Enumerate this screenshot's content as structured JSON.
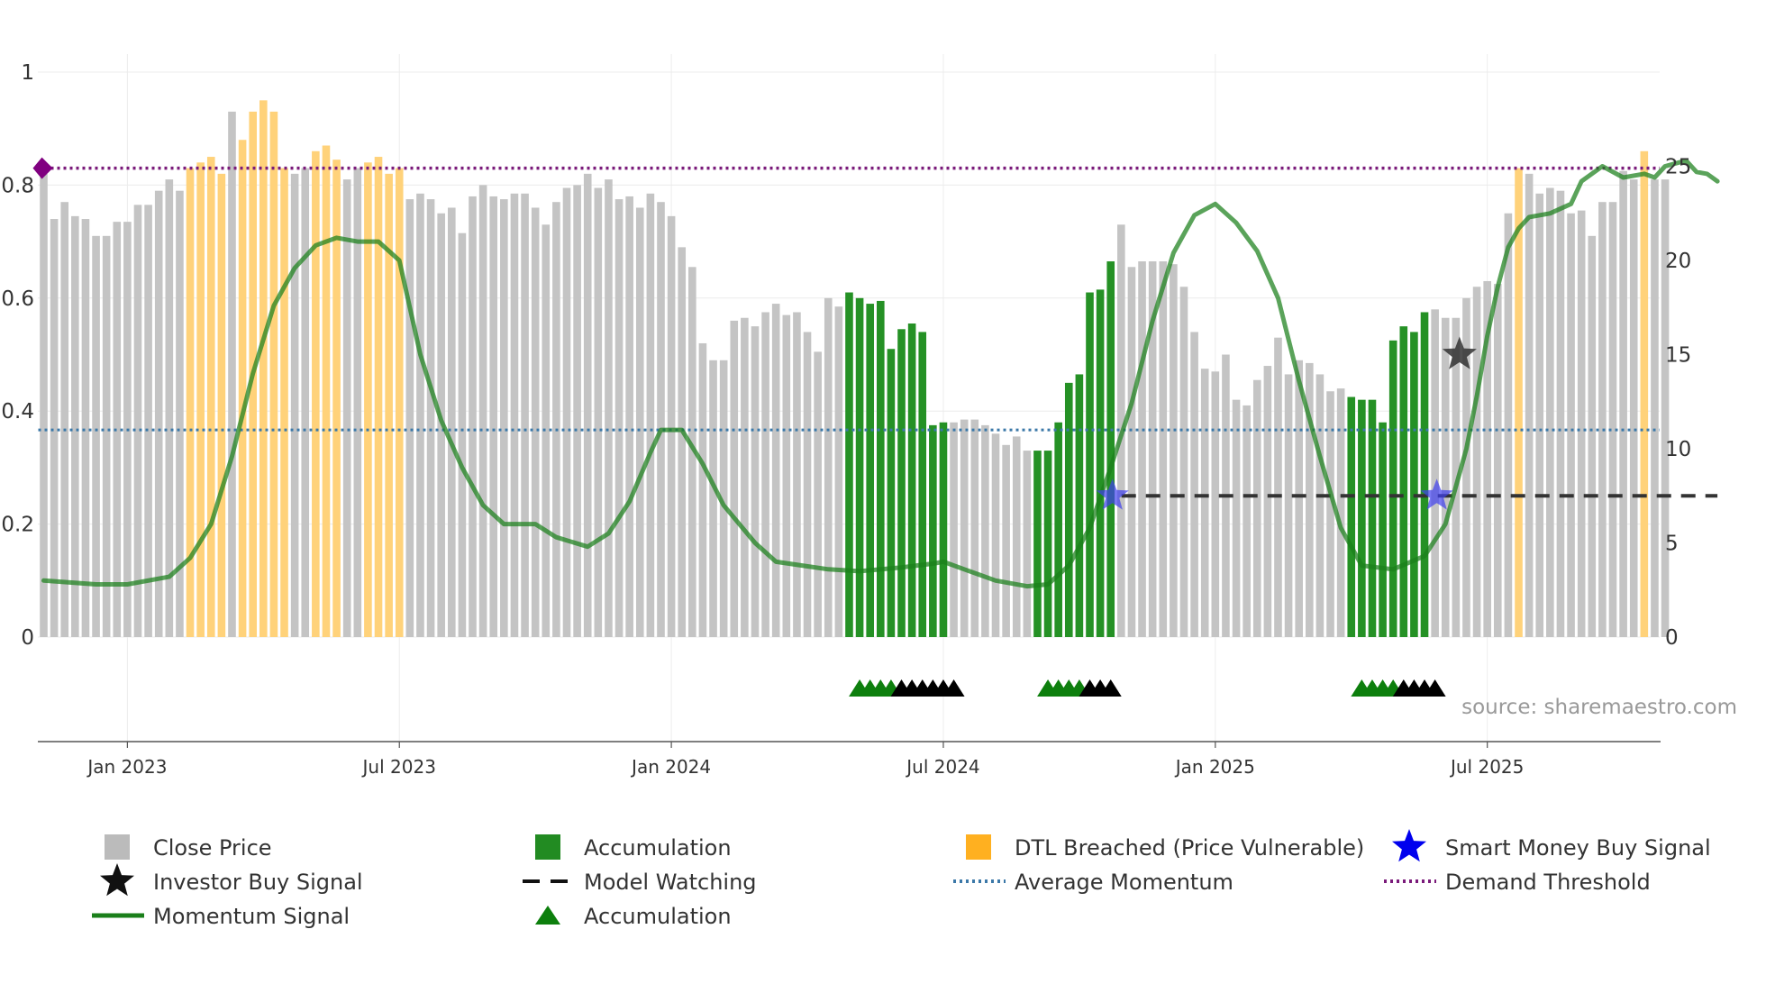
{
  "chart_data": {
    "type": "bar",
    "title": "",
    "source": "source: sharemaestro.com",
    "x_axis": {
      "ticks": [
        {
          "label": "Jan 2023",
          "week": 8
        },
        {
          "label": "Jul 2023",
          "week": 34
        },
        {
          "label": "Jan 2024",
          "week": 60
        },
        {
          "label": "Jul 2024",
          "week": 86
        },
        {
          "label": "Jan 2025",
          "week": 112
        },
        {
          "label": "Jul 2025",
          "week": 138
        }
      ]
    },
    "left_axis": {
      "min": 0,
      "max": 1,
      "ticks": [
        "0",
        "0.2",
        "0.4",
        "0.6",
        "0.8",
        "1"
      ]
    },
    "right_axis": {
      "min": 0,
      "max": 30,
      "ticks": [
        "0",
        "5",
        "10",
        "15",
        "20",
        "25"
      ]
    },
    "close_price": [
      0.82,
      0.74,
      0.77,
      0.745,
      0.74,
      0.71,
      0.71,
      0.735,
      0.735,
      0.765,
      0.765,
      0.79,
      0.81,
      0.79,
      0.83,
      0.84,
      0.85,
      0.82,
      0.93,
      0.88,
      0.93,
      0.95,
      0.93,
      0.83,
      0.82,
      0.83,
      0.86,
      0.87,
      0.845,
      0.81,
      0.83,
      0.84,
      0.85,
      0.82,
      0.83,
      0.775,
      0.785,
      0.775,
      0.75,
      0.76,
      0.715,
      0.78,
      0.8,
      0.78,
      0.775,
      0.785,
      0.785,
      0.76,
      0.73,
      0.77,
      0.795,
      0.8,
      0.82,
      0.795,
      0.81,
      0.775,
      0.78,
      0.76,
      0.785,
      0.77,
      0.745,
      0.69,
      0.655,
      0.52,
      0.49,
      0.49,
      0.56,
      0.565,
      0.55,
      0.575,
      0.59,
      0.57,
      0.575,
      0.54,
      0.505,
      0.6,
      0.585,
      0.61,
      0.6,
      0.59,
      0.595,
      0.51,
      0.545,
      0.555,
      0.54,
      0.375,
      0.38,
      0.38,
      0.385,
      0.385,
      0.375,
      0.36,
      0.34,
      0.355,
      0.33,
      0.33,
      0.33,
      0.38,
      0.45,
      0.465,
      0.61,
      0.615,
      0.665,
      0.73,
      0.655,
      0.665,
      0.665,
      0.665,
      0.66,
      0.62,
      0.54,
      0.475,
      0.47,
      0.5,
      0.42,
      0.41,
      0.455,
      0.48,
      0.53,
      0.465,
      0.49,
      0.485,
      0.465,
      0.435,
      0.44,
      0.425,
      0.42,
      0.42,
      0.38,
      0.525,
      0.55,
      0.54,
      0.575,
      0.58,
      0.565,
      0.565,
      0.6,
      0.62,
      0.63,
      0.625,
      0.75,
      0.83,
      0.82,
      0.785,
      0.795,
      0.79,
      0.75,
      0.755,
      0.71,
      0.77,
      0.77,
      0.825,
      0.81,
      0.86,
      0.81,
      0.81
    ],
    "bar_categories": {
      "accumulation_weeks": [
        77,
        78,
        79,
        80,
        81,
        82,
        83,
        84,
        85,
        86,
        95,
        96,
        97,
        98,
        99,
        100,
        101,
        102,
        125,
        126,
        127,
        128,
        129,
        130,
        131,
        132
      ],
      "dtl_breached_weeks": [
        14,
        15,
        16,
        17,
        19,
        20,
        21,
        22,
        23,
        26,
        27,
        28,
        31,
        32,
        33,
        34,
        141,
        153
      ]
    },
    "momentum_signal": [
      [
        0,
        3
      ],
      [
        5,
        2.8
      ],
      [
        8,
        2.8
      ],
      [
        12,
        3.2
      ],
      [
        14,
        4.2
      ],
      [
        16,
        6
      ],
      [
        18,
        9.6
      ],
      [
        20,
        14
      ],
      [
        22,
        17.6
      ],
      [
        24,
        19.6
      ],
      [
        26,
        20.8
      ],
      [
        28,
        21.2
      ],
      [
        30,
        21
      ],
      [
        32,
        21
      ],
      [
        34,
        20
      ],
      [
        36,
        15
      ],
      [
        38,
        11.5
      ],
      [
        40,
        9
      ],
      [
        42,
        7
      ],
      [
        44,
        6
      ],
      [
        47,
        6
      ],
      [
        49,
        5.3
      ],
      [
        52,
        4.8
      ],
      [
        54,
        5.5
      ],
      [
        56,
        7.2
      ],
      [
        58,
        9.8
      ],
      [
        59,
        11
      ],
      [
        61,
        11
      ],
      [
        63,
        9.2
      ],
      [
        65,
        7
      ],
      [
        68,
        5
      ],
      [
        70,
        4
      ],
      [
        75,
        3.6
      ],
      [
        78,
        3.5
      ],
      [
        82,
        3.7
      ],
      [
        85,
        3.9
      ],
      [
        86,
        4
      ],
      [
        88,
        3.6
      ],
      [
        91,
        3
      ],
      [
        94,
        2.7
      ],
      [
        96,
        2.8
      ],
      [
        98,
        3.8
      ],
      [
        100,
        5.8
      ],
      [
        102,
        9
      ],
      [
        104,
        12.4
      ],
      [
        106,
        16.8
      ],
      [
        108,
        20.4
      ],
      [
        110,
        22.4
      ],
      [
        112,
        23
      ],
      [
        114,
        22
      ],
      [
        116,
        20.5
      ],
      [
        118,
        18
      ],
      [
        120,
        13.6
      ],
      [
        122,
        9.6
      ],
      [
        124,
        5.8
      ],
      [
        126,
        3.8
      ],
      [
        129,
        3.6
      ],
      [
        132,
        4.3
      ],
      [
        134,
        6
      ],
      [
        136,
        10
      ],
      [
        137,
        12.8
      ],
      [
        138,
        16
      ],
      [
        139,
        18.6
      ],
      [
        140,
        20.7
      ],
      [
        141,
        21.7
      ],
      [
        142,
        22.3
      ],
      [
        144,
        22.5
      ],
      [
        146,
        23
      ],
      [
        147,
        24.2
      ],
      [
        149,
        25
      ],
      [
        151,
        24.4
      ],
      [
        153,
        24.6
      ],
      [
        154,
        24.4
      ],
      [
        155,
        25
      ],
      [
        157,
        25.3
      ],
      [
        158,
        24.7
      ],
      [
        159,
        24.6
      ],
      [
        160,
        24.2
      ]
    ],
    "average_momentum": 11,
    "demand_threshold": 0.83,
    "model_watching": {
      "level": 7.5,
      "from_week": 102,
      "to_week": 160
    },
    "smart_money_buy_signals": [
      {
        "week": 102,
        "level": 7.5
      },
      {
        "week": 133,
        "level": 7.5
      }
    ],
    "investor_buy_signals": [
      {
        "week": 135,
        "level": 15
      }
    ],
    "accumulation_markers": {
      "green_weeks": [
        78,
        79,
        80,
        81,
        96,
        97,
        98,
        99,
        126,
        127,
        128,
        129
      ],
      "black_weeks": [
        82,
        83,
        84,
        85,
        86,
        87,
        100,
        101,
        102,
        130,
        131,
        132,
        133
      ]
    },
    "start_marker": {
      "week": 0,
      "value": 0.83
    },
    "legend": [
      {
        "label": "Close Price",
        "symbol": "square",
        "color": "#bbbbbb"
      },
      {
        "label": "Accumulation",
        "symbol": "square",
        "color": "#228b22"
      },
      {
        "label": "DTL Breached (Price Vulnerable)",
        "symbol": "square",
        "color": "#ffb020"
      },
      {
        "label": "Smart Money Buy Signal",
        "symbol": "star",
        "color": "#0000ee"
      },
      {
        "label": "Investor Buy Signal",
        "symbol": "star",
        "color": "#111111"
      },
      {
        "label": "Model Watching",
        "symbol": "dash",
        "color": "#111111"
      },
      {
        "label": "Average Momentum",
        "symbol": "dots",
        "color": "#3b78a8"
      },
      {
        "label": "Demand Threshold",
        "symbol": "dots",
        "color": "#7a1a7a"
      },
      {
        "label": "Momentum Signal",
        "symbol": "line",
        "color": "#1a7f1a"
      },
      {
        "label": "Accumulation",
        "symbol": "triangle",
        "color": "#0d7f0d"
      }
    ]
  }
}
